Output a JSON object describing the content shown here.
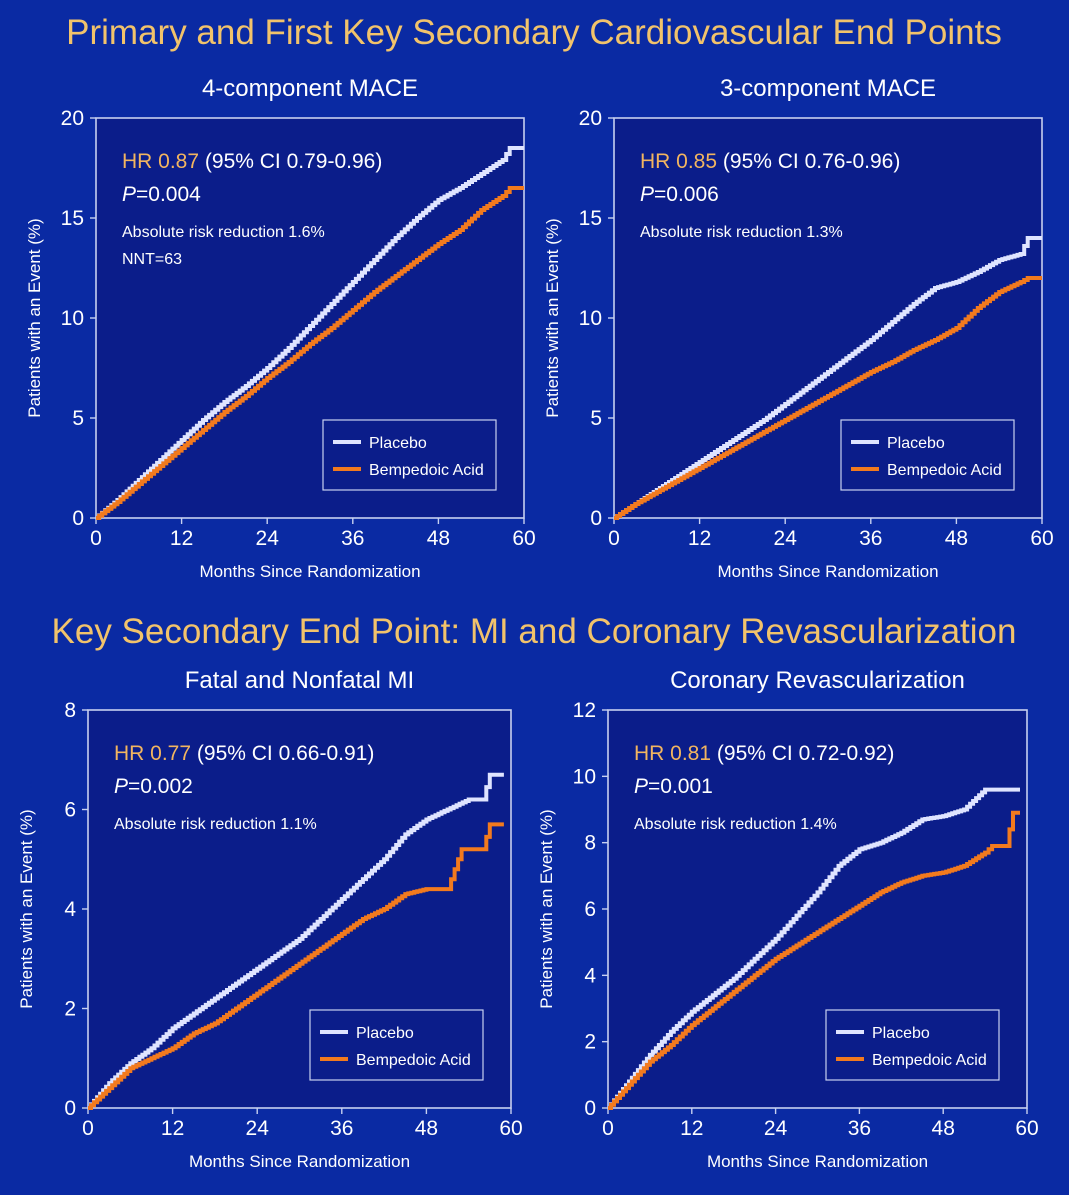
{
  "headings": {
    "top": "Primary and First Key Secondary Cardiovascular End Points",
    "middle": "Key Secondary End Point: MI and Coronary Revascularization"
  },
  "colors": {
    "background": "#0a2aa3",
    "plot_bg": "#0b1d8a",
    "placebo": "#dfe4ff",
    "bempedoic": "#f27a1e",
    "heading": "#f2c36b",
    "hr_label": "#f2b560"
  },
  "chart_data": [
    {
      "type": "line",
      "title": "4-component MACE",
      "xlabel": "Months Since Randomization",
      "ylabel": "Patients with an Event (%)",
      "xlim": [
        0,
        60
      ],
      "ylim": [
        0,
        20
      ],
      "xticks": [
        "0",
        "12",
        "24",
        "36",
        "48",
        "60"
      ],
      "yticks": [
        "0",
        "5",
        "10",
        "15",
        "20"
      ],
      "hr_label": "HR 0.87",
      "hr_ci": "(95% CI 0.79-0.96)",
      "p_prefix": "P",
      "p_value": "=0.004",
      "notes": [
        "Absolute risk reduction 1.6%",
        "NNT=63"
      ],
      "legend": "bottom-right",
      "series": [
        {
          "name": "Placebo",
          "x": [
            0,
            3,
            6,
            9,
            12,
            15,
            18,
            21,
            24,
            27,
            30,
            33,
            36,
            39,
            42,
            45,
            48,
            51,
            54,
            57,
            58,
            60
          ],
          "y": [
            0,
            0.9,
            1.9,
            2.9,
            3.9,
            4.9,
            5.8,
            6.6,
            7.5,
            8.5,
            9.6,
            10.7,
            11.8,
            12.9,
            14.0,
            15.0,
            15.9,
            16.5,
            17.2,
            17.9,
            18.5,
            18.5
          ]
        },
        {
          "name": "Bempedoic Acid",
          "x": [
            0,
            3,
            6,
            9,
            12,
            15,
            18,
            21,
            24,
            27,
            30,
            33,
            36,
            39,
            42,
            45,
            48,
            51,
            54,
            57,
            58,
            60
          ],
          "y": [
            0,
            0.8,
            1.7,
            2.6,
            3.5,
            4.4,
            5.3,
            6.1,
            7.0,
            7.8,
            8.7,
            9.5,
            10.4,
            11.3,
            12.1,
            12.9,
            13.7,
            14.4,
            15.4,
            16.1,
            16.5,
            16.5
          ]
        }
      ]
    },
    {
      "type": "line",
      "title": "3-component MACE",
      "xlabel": "Months Since Randomization",
      "ylabel": "Patients with an Event (%)",
      "xlim": [
        0,
        60
      ],
      "ylim": [
        0,
        20
      ],
      "xticks": [
        "0",
        "12",
        "24",
        "36",
        "48",
        "60"
      ],
      "yticks": [
        "0",
        "5",
        "10",
        "15",
        "20"
      ],
      "hr_label": "HR 0.85",
      "hr_ci": "(95% CI 0.76-0.96)",
      "p_prefix": "P",
      "p_value": "=0.006",
      "notes": [
        "Absolute risk reduction 1.3%"
      ],
      "legend": "bottom-right",
      "series": [
        {
          "name": "Placebo",
          "x": [
            0,
            3,
            6,
            9,
            12,
            15,
            18,
            21,
            24,
            27,
            30,
            33,
            36,
            39,
            42,
            45,
            48,
            51,
            54,
            57,
            58,
            60
          ],
          "y": [
            0,
            0.7,
            1.4,
            2.1,
            2.8,
            3.5,
            4.2,
            4.9,
            5.7,
            6.5,
            7.3,
            8.1,
            8.9,
            9.8,
            10.7,
            11.5,
            11.8,
            12.3,
            12.9,
            13.2,
            14.0,
            14.0
          ]
        },
        {
          "name": "Bempedoic Acid",
          "x": [
            0,
            3,
            6,
            9,
            12,
            15,
            18,
            21,
            24,
            27,
            30,
            33,
            36,
            39,
            42,
            45,
            48,
            51,
            54,
            57,
            58,
            60
          ],
          "y": [
            0,
            0.7,
            1.3,
            1.9,
            2.5,
            3.1,
            3.7,
            4.3,
            4.9,
            5.5,
            6.1,
            6.7,
            7.3,
            7.8,
            8.4,
            8.9,
            9.5,
            10.5,
            11.3,
            11.8,
            12.0,
            12.0
          ]
        }
      ]
    },
    {
      "type": "line",
      "title": "Fatal and Nonfatal MI",
      "xlabel": "Months Since Randomization",
      "ylabel": "Patients with an Event (%)",
      "xlim": [
        0,
        60
      ],
      "ylim": [
        0,
        8
      ],
      "xticks": [
        "0",
        "12",
        "24",
        "36",
        "48",
        "60"
      ],
      "yticks": [
        "0",
        "2",
        "4",
        "6",
        "8"
      ],
      "hr_label": "HR 0.77",
      "hr_ci": "(95% CI 0.66-0.91)",
      "p_prefix": "P",
      "p_value": "=0.002",
      "notes": [
        "Absolute risk reduction 1.1%"
      ],
      "legend": "bottom-right",
      "series": [
        {
          "name": "Placebo",
          "x": [
            0,
            3,
            6,
            9,
            12,
            15,
            18,
            21,
            24,
            27,
            30,
            33,
            36,
            39,
            42,
            45,
            48,
            51,
            54,
            56,
            57,
            59
          ],
          "y": [
            0,
            0.5,
            0.9,
            1.2,
            1.6,
            1.9,
            2.2,
            2.5,
            2.8,
            3.1,
            3.4,
            3.8,
            4.2,
            4.6,
            5.0,
            5.5,
            5.8,
            6.0,
            6.2,
            6.2,
            6.7,
            6.7
          ]
        },
        {
          "name": "Bempedoic Acid",
          "x": [
            0,
            3,
            6,
            9,
            12,
            15,
            18,
            21,
            24,
            27,
            30,
            33,
            36,
            39,
            42,
            45,
            48,
            51,
            52,
            53,
            56,
            57,
            59
          ],
          "y": [
            0,
            0.4,
            0.8,
            1.0,
            1.2,
            1.5,
            1.7,
            2.0,
            2.3,
            2.6,
            2.9,
            3.2,
            3.5,
            3.8,
            4.0,
            4.3,
            4.4,
            4.4,
            4.8,
            5.2,
            5.2,
            5.7,
            5.7
          ]
        }
      ]
    },
    {
      "type": "line",
      "title": "Coronary Revascularization",
      "xlabel": "Months Since Randomization",
      "ylabel": "Patients with an Event (%)",
      "xlim": [
        0,
        60
      ],
      "ylim": [
        0,
        12
      ],
      "xticks": [
        "0",
        "12",
        "24",
        "36",
        "48",
        "60"
      ],
      "yticks": [
        "0",
        "2",
        "4",
        "6",
        "8",
        "10",
        "12"
      ],
      "hr_label": "HR 0.81",
      "hr_ci": "(95% CI 0.72-0.92)",
      "p_prefix": "P",
      "p_value": "=0.001",
      "notes": [
        "Absolute risk reduction 1.4%"
      ],
      "legend": "bottom-right",
      "series": [
        {
          "name": "Placebo",
          "x": [
            0,
            3,
            6,
            9,
            12,
            15,
            18,
            21,
            24,
            27,
            30,
            33,
            36,
            39,
            42,
            45,
            48,
            51,
            54,
            57,
            59
          ],
          "y": [
            0,
            0.8,
            1.6,
            2.3,
            2.9,
            3.4,
            3.9,
            4.5,
            5.1,
            5.8,
            6.5,
            7.3,
            7.8,
            8.0,
            8.3,
            8.7,
            8.8,
            9.0,
            9.6,
            9.6,
            9.6
          ]
        },
        {
          "name": "Bempedoic Acid",
          "x": [
            0,
            3,
            6,
            9,
            12,
            15,
            18,
            21,
            24,
            27,
            30,
            33,
            36,
            39,
            42,
            45,
            48,
            51,
            54,
            55,
            57,
            58,
            59
          ],
          "y": [
            0,
            0.7,
            1.4,
            1.9,
            2.5,
            3.0,
            3.5,
            4.0,
            4.5,
            4.9,
            5.3,
            5.7,
            6.1,
            6.5,
            6.8,
            7.0,
            7.1,
            7.3,
            7.7,
            7.9,
            7.9,
            8.9,
            8.9
          ]
        }
      ]
    }
  ]
}
